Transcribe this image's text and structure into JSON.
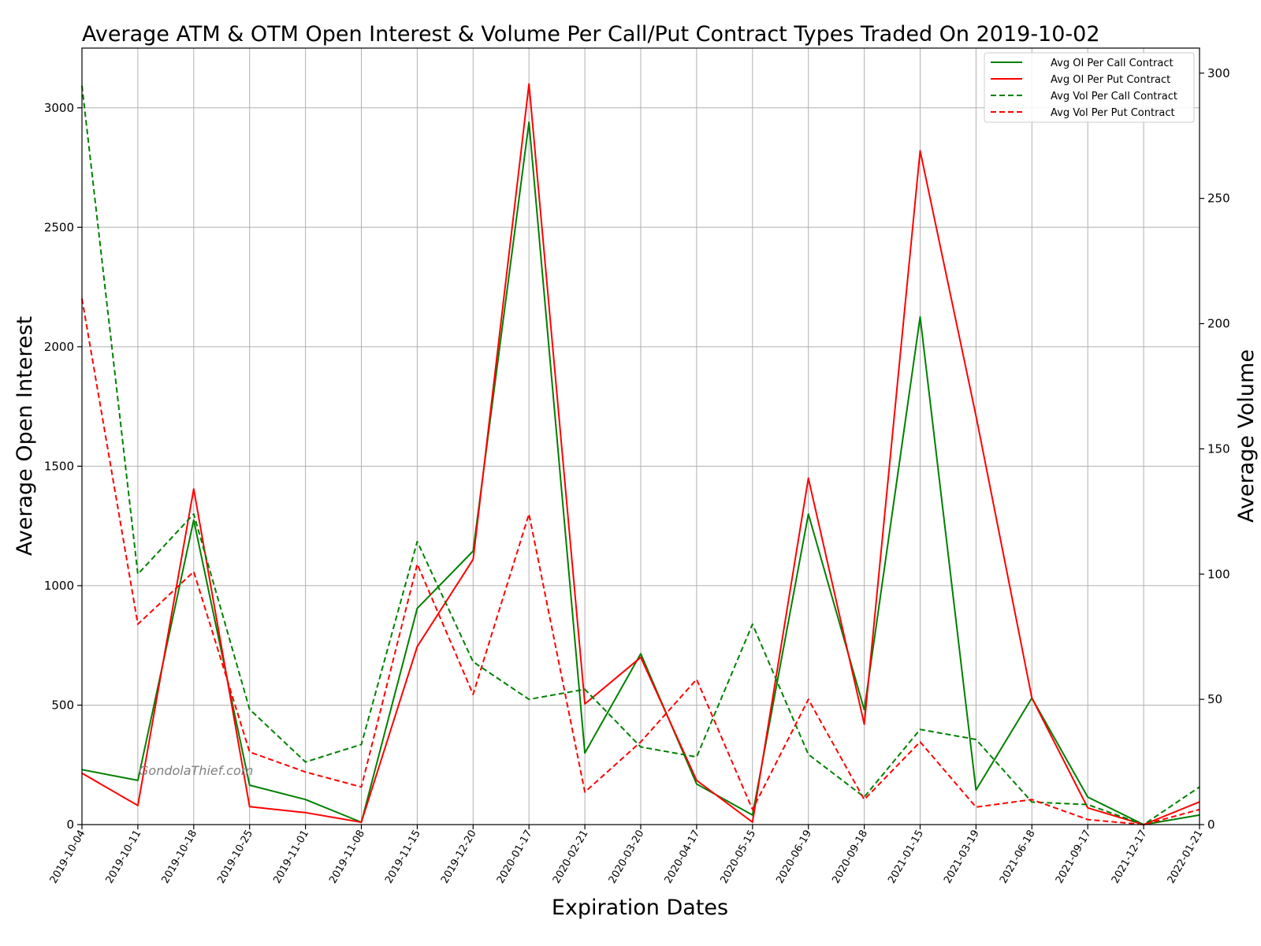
{
  "chart_data": {
    "type": "line",
    "title": "Average ATM & OTM Open Interest & Volume Per Call/Put Contract Types Traded On 2019-10-02",
    "xlabel": "Expiration Dates",
    "ylabel_left": "Average Open Interest",
    "ylabel_right": "Average Volume",
    "categories": [
      "2019-10-04",
      "2019-10-11",
      "2019-10-18",
      "2019-10-25",
      "2019-11-01",
      "2019-11-08",
      "2019-11-15",
      "2019-12-20",
      "2020-01-17",
      "2020-02-21",
      "2020-03-20",
      "2020-04-17",
      "2020-05-15",
      "2020-06-19",
      "2020-09-18",
      "2021-01-15",
      "2021-03-19",
      "2021-06-18",
      "2021-09-17",
      "2021-12-17",
      "2022-01-21"
    ],
    "ylim_left": [
      0,
      3250
    ],
    "ylim_right": [
      0,
      310
    ],
    "yticks_left": [
      0,
      500,
      1000,
      1500,
      2000,
      2500,
      3000
    ],
    "yticks_right": [
      0,
      50,
      100,
      150,
      200,
      250,
      300
    ],
    "grid": true,
    "legend_position": "top-right",
    "series": [
      {
        "name": "Avg OI Per Call Contract",
        "axis": "left",
        "color": "#008000",
        "dash": false,
        "values": [
          230,
          185,
          1275,
          165,
          105,
          10,
          905,
          1145,
          2940,
          300,
          715,
          170,
          40,
          1300,
          480,
          2125,
          145,
          530,
          115,
          0,
          40
        ]
      },
      {
        "name": "Avg OI Per Put Contract",
        "axis": "left",
        "color": "#ff0000",
        "dash": false,
        "values": [
          215,
          80,
          1405,
          75,
          50,
          10,
          745,
          1110,
          3100,
          505,
          700,
          185,
          10,
          1450,
          420,
          2820,
          1710,
          530,
          70,
          0,
          95
        ]
      },
      {
        "name": "Avg Vol Per Call Contract",
        "axis": "right",
        "color": "#008000",
        "dash": true,
        "values": [
          295,
          100,
          124,
          46,
          25,
          32,
          113,
          65,
          50,
          54,
          31,
          27,
          80,
          28,
          11,
          38,
          34,
          9,
          8,
          0,
          15
        ]
      },
      {
        "name": "Avg Vol Per Put Contract",
        "axis": "right",
        "color": "#ff0000",
        "dash": true,
        "values": [
          210,
          80,
          101,
          29,
          21,
          15,
          104,
          52,
          124,
          13,
          33,
          58,
          6,
          50,
          10,
          33,
          7,
          10,
          2,
          0,
          6
        ]
      }
    ]
  },
  "watermark": "GondolaThief.com"
}
